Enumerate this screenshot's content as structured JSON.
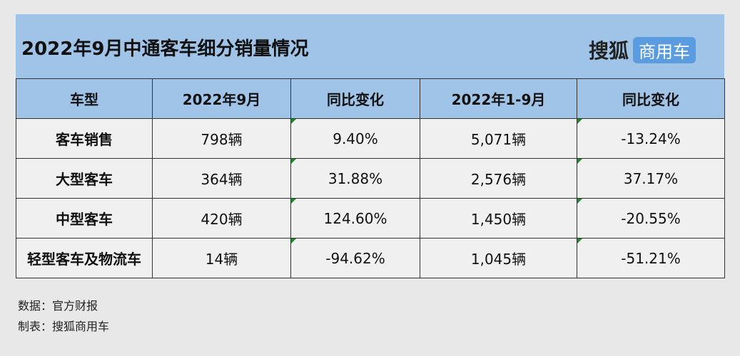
{
  "header": {
    "title": "2022年9月中通客车细分销量情况",
    "logo_brand": "搜狐",
    "logo_tag": "商用车"
  },
  "table": {
    "columns": [
      "车型",
      "2022年9月",
      "同比变化",
      "2022年1-9月",
      "同比变化"
    ],
    "rows": [
      [
        "客车销售",
        "798辆",
        "9.40%",
        "5,071辆",
        "-13.24%"
      ],
      [
        "大型客车",
        "364辆",
        "31.88%",
        "2,576辆",
        "37.17%"
      ],
      [
        "中型客车",
        "420辆",
        "124.60%",
        "1,450辆",
        "-20.55%"
      ],
      [
        "轻型客车及物流车",
        "14辆",
        "-94.62%",
        "1,045辆",
        "-51.21%"
      ]
    ]
  },
  "footer": {
    "source": "数据：官方财报",
    "maker": "制表：搜狐商用车"
  }
}
